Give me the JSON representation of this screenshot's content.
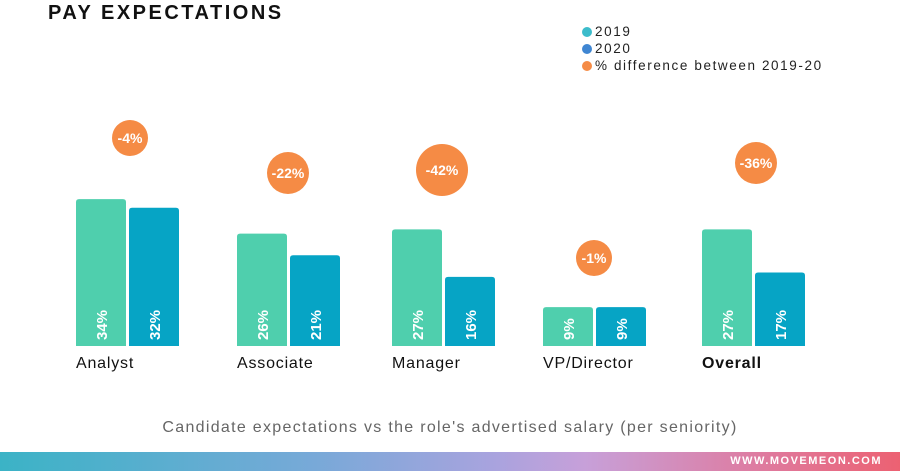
{
  "title": "PAY EXPECTATIONS",
  "legend": [
    {
      "label": "2019",
      "color": "#3cbccb"
    },
    {
      "label": "2020",
      "color": "#3f86d2"
    },
    {
      "label": "% difference between 2019-20",
      "color": "#f58b45"
    }
  ],
  "caption": "Candidate expectations vs the role's advertised salary (per seniority)",
  "footer": {
    "website": "WWW.MOVEMEON.COM"
  },
  "colors": {
    "bar_2019": "#4fcfad",
    "bar_2020": "#06a4c5",
    "bubble": "#f58b45"
  },
  "chart_data": {
    "type": "bar",
    "title": "PAY EXPECTATIONS",
    "subtitle": "Candidate expectations vs the role's advertised salary (per seniority)",
    "categories": [
      "Analyst",
      "Associate",
      "Manager",
      "VP/Director",
      "Overall"
    ],
    "bold_categories": [
      "Overall"
    ],
    "series": [
      {
        "name": "2019",
        "values": [
          34,
          26,
          27,
          9,
          27
        ],
        "labels": [
          "34%",
          "26%",
          "27%",
          "9%",
          "27%"
        ]
      },
      {
        "name": "2020",
        "values": [
          32,
          21,
          16,
          9,
          17
        ],
        "labels": [
          "32%",
          "21%",
          "16%",
          "9%",
          "17%"
        ]
      }
    ],
    "difference": {
      "name": "% difference between 2019-20",
      "values": [
        -4,
        -22,
        -42,
        -1,
        -36
      ],
      "labels": [
        "-4%",
        "-22%",
        "-42%",
        "-1%",
        "-36%"
      ]
    },
    "xlabel": "",
    "ylabel": "",
    "ylim": [
      0,
      40
    ],
    "grid": false,
    "legend_position": "top-right",
    "unit": "%"
  }
}
